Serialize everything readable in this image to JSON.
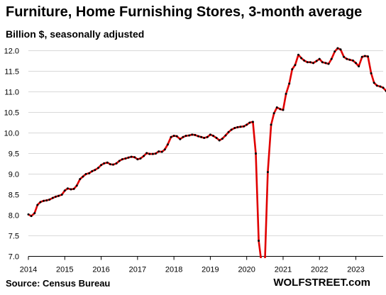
{
  "title": "Furniture, Home Furnishing Stores, 3-month average",
  "subtitle": "Billion $, seasonally adjusted",
  "source": "Source: Census Bureau",
  "brand": "WOLFSTREET.com",
  "colors": {
    "line": "#e00000",
    "marker": "#000000",
    "grid": "#d9d9d9"
  },
  "chart_data": {
    "type": "line",
    "title": "Furniture, Home Furnishing Stores, 3-month average",
    "ylabel": "Billion $, seasonally adjusted",
    "xlabel": "",
    "ylim": [
      7.0,
      12.0
    ],
    "xlim": [
      2014.0,
      2023.75
    ],
    "grid": "horizontal",
    "x_ticks": [
      "2014",
      "2015",
      "2016",
      "2017",
      "2018",
      "2019",
      "2020",
      "2021",
      "2022",
      "2023"
    ],
    "y_ticks": [
      "7.0",
      "7.5",
      "8.0",
      "8.5",
      "9.0",
      "9.5",
      "10.0",
      "10.5",
      "11.0",
      "11.5",
      "12.0"
    ],
    "series": [
      {
        "markers": true,
        "points": [
          [
            2014.0,
            8.02
          ],
          [
            2014.08,
            7.98
          ],
          [
            2014.17,
            8.05
          ],
          [
            2014.25,
            8.25
          ],
          [
            2014.33,
            8.32
          ],
          [
            2014.42,
            8.35
          ],
          [
            2014.5,
            8.36
          ],
          [
            2014.58,
            8.38
          ],
          [
            2014.67,
            8.42
          ],
          [
            2014.75,
            8.45
          ],
          [
            2014.83,
            8.47
          ],
          [
            2014.92,
            8.5
          ],
          [
            2015.0,
            8.6
          ],
          [
            2015.08,
            8.65
          ],
          [
            2015.17,
            8.63
          ],
          [
            2015.25,
            8.64
          ],
          [
            2015.33,
            8.72
          ],
          [
            2015.42,
            8.88
          ],
          [
            2015.5,
            8.94
          ],
          [
            2015.58,
            9.0
          ],
          [
            2015.67,
            9.02
          ],
          [
            2015.75,
            9.07
          ],
          [
            2015.83,
            9.1
          ],
          [
            2015.92,
            9.15
          ],
          [
            2016.0,
            9.22
          ],
          [
            2016.08,
            9.26
          ],
          [
            2016.17,
            9.28
          ],
          [
            2016.25,
            9.24
          ],
          [
            2016.33,
            9.23
          ],
          [
            2016.42,
            9.26
          ],
          [
            2016.5,
            9.32
          ],
          [
            2016.58,
            9.36
          ],
          [
            2016.67,
            9.38
          ],
          [
            2016.75,
            9.4
          ],
          [
            2016.83,
            9.42
          ],
          [
            2016.92,
            9.41
          ],
          [
            2017.0,
            9.36
          ],
          [
            2017.08,
            9.38
          ],
          [
            2017.17,
            9.44
          ],
          [
            2017.25,
            9.51
          ],
          [
            2017.33,
            9.49
          ],
          [
            2017.42,
            9.49
          ],
          [
            2017.5,
            9.5
          ],
          [
            2017.58,
            9.55
          ],
          [
            2017.67,
            9.54
          ],
          [
            2017.75,
            9.6
          ],
          [
            2017.83,
            9.72
          ],
          [
            2017.92,
            9.9
          ],
          [
            2018.0,
            9.93
          ],
          [
            2018.08,
            9.92
          ],
          [
            2018.17,
            9.85
          ],
          [
            2018.25,
            9.9
          ],
          [
            2018.33,
            9.93
          ],
          [
            2018.42,
            9.94
          ],
          [
            2018.5,
            9.96
          ],
          [
            2018.58,
            9.95
          ],
          [
            2018.67,
            9.92
          ],
          [
            2018.75,
            9.9
          ],
          [
            2018.83,
            9.88
          ],
          [
            2018.92,
            9.9
          ],
          [
            2019.0,
            9.96
          ],
          [
            2019.08,
            9.93
          ],
          [
            2019.17,
            9.88
          ],
          [
            2019.25,
            9.82
          ],
          [
            2019.33,
            9.86
          ],
          [
            2019.42,
            9.94
          ],
          [
            2019.5,
            10.02
          ],
          [
            2019.58,
            10.08
          ],
          [
            2019.67,
            10.12
          ],
          [
            2019.75,
            10.14
          ],
          [
            2019.83,
            10.15
          ],
          [
            2019.92,
            10.16
          ],
          [
            2020.0,
            10.2
          ],
          [
            2020.08,
            10.25
          ],
          [
            2020.17,
            10.27
          ],
          [
            2020.25,
            9.5
          ],
          [
            2020.33,
            7.38
          ],
          [
            2020.42,
            6.75
          ],
          [
            2020.5,
            6.85
          ],
          [
            2020.58,
            9.05
          ],
          [
            2020.67,
            10.2
          ],
          [
            2020.75,
            10.48
          ],
          [
            2020.83,
            10.62
          ],
          [
            2020.92,
            10.58
          ],
          [
            2021.0,
            10.56
          ],
          [
            2021.08,
            10.95
          ],
          [
            2021.17,
            11.2
          ],
          [
            2021.25,
            11.55
          ],
          [
            2021.33,
            11.65
          ],
          [
            2021.42,
            11.9
          ],
          [
            2021.5,
            11.82
          ],
          [
            2021.58,
            11.76
          ],
          [
            2021.67,
            11.72
          ],
          [
            2021.75,
            11.72
          ],
          [
            2021.83,
            11.7
          ],
          [
            2021.92,
            11.75
          ],
          [
            2022.0,
            11.8
          ],
          [
            2022.08,
            11.72
          ],
          [
            2022.17,
            11.7
          ],
          [
            2022.25,
            11.68
          ],
          [
            2022.33,
            11.8
          ],
          [
            2022.42,
            11.98
          ],
          [
            2022.5,
            12.06
          ],
          [
            2022.58,
            12.03
          ],
          [
            2022.67,
            11.85
          ],
          [
            2022.75,
            11.8
          ],
          [
            2022.83,
            11.78
          ],
          [
            2022.92,
            11.76
          ],
          [
            2023.0,
            11.7
          ],
          [
            2023.08,
            11.62
          ],
          [
            2023.17,
            11.85
          ],
          [
            2023.25,
            11.87
          ],
          [
            2023.33,
            11.86
          ],
          [
            2023.42,
            11.45
          ],
          [
            2023.5,
            11.22
          ],
          [
            2023.58,
            11.15
          ],
          [
            2023.67,
            11.13
          ],
          [
            2023.75,
            11.1
          ],
          [
            2023.83,
            11.02
          ]
        ]
      }
    ]
  }
}
